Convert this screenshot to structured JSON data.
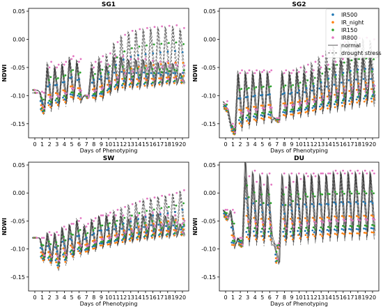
{
  "chart_data": [
    {
      "type": "line",
      "title": "SG1",
      "xlabel": "Days of Phenotyping",
      "ylabel": "NDWI",
      "ylim": [
        -0.175,
        0.055
      ],
      "yticks": [
        0.05,
        0.0,
        -0.05,
        -0.1,
        -0.15
      ],
      "xticks": [
        0,
        1,
        2,
        3,
        4,
        5,
        6,
        7,
        8,
        9,
        10,
        11,
        12,
        13,
        14,
        15,
        16,
        17,
        18,
        19,
        20
      ],
      "day_ranges": {
        "normal": {
          "low": [
            -0.09,
            -0.13,
            -0.125,
            -0.12,
            -0.115,
            -0.11,
            -0.112,
            -0.1,
            -0.11,
            -0.108,
            -0.1,
            -0.095,
            -0.092,
            -0.09,
            -0.09,
            -0.088,
            -0.087,
            -0.085,
            -0.083,
            -0.082,
            -0.08
          ],
          "high": [
            -0.09,
            -0.093,
            -0.05,
            -0.05,
            -0.045,
            -0.035,
            -0.04,
            -0.1,
            -0.05,
            -0.04,
            -0.045,
            -0.03,
            -0.03,
            -0.035,
            -0.035,
            -0.035,
            -0.038,
            -0.04,
            -0.04,
            -0.042,
            -0.06
          ]
        },
        "drought_stress": {
          "low": [
            -0.095,
            -0.135,
            -0.13,
            -0.125,
            -0.12,
            -0.112,
            -0.115,
            -0.105,
            -0.112,
            -0.11,
            -0.1,
            -0.095,
            -0.09,
            -0.088,
            -0.085,
            -0.083,
            -0.082,
            -0.08,
            -0.078,
            -0.077,
            -0.075
          ],
          "high": [
            -0.095,
            -0.095,
            -0.04,
            -0.045,
            -0.04,
            -0.03,
            -0.035,
            -0.1,
            -0.04,
            -0.03,
            -0.025,
            -0.005,
            0.008,
            0.015,
            0.018,
            0.02,
            0.022,
            0.023,
            0.024,
            0.025,
            0.02
          ]
        }
      },
      "series": [
        {
          "name": "IR500",
          "color": "#1f77b4"
        },
        {
          "name": "IR_night",
          "color": "#ff7f0e"
        },
        {
          "name": "IR150",
          "color": "#2ca02c"
        },
        {
          "name": "IR800",
          "color": "#e377c2"
        },
        {
          "name": "normal",
          "color": "#333333",
          "style": "solid"
        },
        {
          "name": "drought stress",
          "color": "#333333",
          "style": "dashed"
        }
      ],
      "legend": "top-right",
      "grid": false
    },
    {
      "type": "line",
      "title": "SG2",
      "xlabel": "Days of Phenotyping",
      "ylabel": "NDWI",
      "ylim": [
        -0.175,
        0.055
      ],
      "yticks": [
        0.05,
        0.0,
        -0.05,
        -0.1,
        -0.15
      ],
      "xticks": [
        0,
        1,
        2,
        3,
        4,
        5,
        6,
        7,
        8,
        9,
        10,
        11,
        12,
        13,
        14,
        15,
        16,
        17,
        18,
        19,
        20
      ],
      "day_ranges": {
        "normal": {
          "low": [
            -0.125,
            -0.165,
            -0.16,
            -0.155,
            -0.152,
            -0.15,
            -0.148,
            -0.145,
            -0.143,
            -0.142,
            -0.14,
            -0.138,
            -0.135,
            -0.133,
            -0.132,
            -0.13,
            -0.128,
            -0.125,
            -0.122,
            -0.12,
            -0.12
          ],
          "high": [
            -0.115,
            -0.15,
            -0.06,
            -0.06,
            -0.06,
            -0.058,
            -0.058,
            -0.14,
            -0.06,
            -0.06,
            -0.058,
            -0.058,
            -0.055,
            -0.05,
            -0.045,
            -0.04,
            -0.035,
            -0.03,
            -0.03,
            -0.03,
            -0.03
          ]
        },
        "drought_stress": {
          "low": [
            -0.13,
            -0.17,
            -0.165,
            -0.16,
            -0.155,
            -0.152,
            -0.15,
            -0.148,
            -0.145,
            -0.143,
            -0.14,
            -0.138,
            -0.135,
            -0.133,
            -0.13,
            -0.128,
            -0.126,
            -0.124,
            -0.122,
            -0.12,
            -0.118
          ],
          "high": [
            -0.11,
            -0.155,
            -0.055,
            -0.055,
            -0.055,
            -0.055,
            -0.055,
            -0.14,
            -0.055,
            -0.055,
            -0.05,
            -0.045,
            -0.04,
            -0.03,
            -0.02,
            -0.01,
            -0.005,
            0.0,
            0.002,
            0.003,
            0.0
          ]
        }
      },
      "series": [
        {
          "name": "IR500",
          "color": "#1f77b4"
        },
        {
          "name": "IR_night",
          "color": "#ff7f0e"
        },
        {
          "name": "IR150",
          "color": "#2ca02c"
        },
        {
          "name": "IR800",
          "color": "#e377c2"
        },
        {
          "name": "normal",
          "color": "#333333",
          "style": "solid"
        },
        {
          "name": "drought stress",
          "color": "#333333",
          "style": "dashed"
        }
      ],
      "legend": "top-right",
      "grid": false
    },
    {
      "type": "line",
      "title": "SW",
      "xlabel": "Days of Phenotyping",
      "ylabel": "NDWI",
      "ylim": [
        -0.175,
        0.055
      ],
      "yticks": [
        0.05,
        0.0,
        -0.05,
        -0.1,
        -0.15
      ],
      "xticks": [
        0,
        1,
        2,
        3,
        4,
        5,
        6,
        7,
        8,
        9,
        10,
        11,
        12,
        13,
        14,
        15,
        16,
        17,
        18,
        19,
        20
      ],
      "day_ranges": {
        "normal": {
          "low": [
            -0.08,
            -0.12,
            -0.125,
            -0.13,
            -0.12,
            -0.115,
            -0.11,
            -0.11,
            -0.105,
            -0.1,
            -0.098,
            -0.095,
            -0.093,
            -0.09,
            -0.088,
            -0.086,
            -0.085,
            -0.083,
            -0.082,
            -0.08,
            -0.078
          ],
          "high": [
            -0.08,
            -0.08,
            -0.07,
            -0.07,
            -0.06,
            -0.055,
            -0.05,
            -0.06,
            -0.05,
            -0.04,
            -0.04,
            -0.04,
            -0.04,
            -0.045,
            -0.04,
            -0.04,
            -0.035,
            -0.035,
            -0.04,
            -0.04,
            -0.055
          ]
        },
        "drought_stress": {
          "low": [
            -0.08,
            -0.125,
            -0.13,
            -0.14,
            -0.13,
            -0.12,
            -0.115,
            -0.11,
            -0.105,
            -0.1,
            -0.098,
            -0.095,
            -0.09,
            -0.088,
            -0.085,
            -0.083,
            -0.08,
            -0.078,
            -0.076,
            -0.075,
            -0.073
          ],
          "high": [
            -0.08,
            -0.08,
            -0.075,
            -0.075,
            -0.065,
            -0.055,
            -0.045,
            -0.055,
            -0.045,
            -0.04,
            -0.035,
            -0.03,
            -0.025,
            -0.02,
            -0.015,
            -0.01,
            -0.008,
            -0.005,
            -0.003,
            0.0,
            0.005
          ]
        }
      },
      "series": [
        {
          "name": "IR500",
          "color": "#1f77b4"
        },
        {
          "name": "IR_night",
          "color": "#ff7f0e"
        },
        {
          "name": "IR150",
          "color": "#2ca02c"
        },
        {
          "name": "IR800",
          "color": "#e377c2"
        },
        {
          "name": "normal",
          "color": "#333333",
          "style": "solid"
        },
        {
          "name": "drought stress",
          "color": "#333333",
          "style": "dashed"
        }
      ],
      "legend": "top-right",
      "grid": false
    },
    {
      "type": "line",
      "title": "DU",
      "xlabel": "Days of Phenotyping",
      "ylabel": "NDWI",
      "ylim": [
        -0.175,
        0.055
      ],
      "yticks": [
        0.05,
        0.0,
        -0.05,
        -0.1,
        -0.15
      ],
      "xticks": [
        0,
        1,
        2,
        3,
        4,
        5,
        6,
        7,
        8,
        9,
        10,
        11,
        12,
        13,
        14,
        15,
        16,
        17,
        18,
        19,
        20
      ],
      "day_ranges": {
        "normal": {
          "low": [
            -0.045,
            -0.1,
            -0.095,
            -0.095,
            -0.09,
            -0.09,
            -0.09,
            -0.128,
            -0.09,
            -0.09,
            -0.088,
            -0.088,
            -0.087,
            -0.087,
            -0.086,
            -0.086,
            -0.085,
            -0.085,
            -0.085,
            -0.084,
            -0.083
          ],
          "high": [
            -0.03,
            -0.03,
            -0.08,
            0.06,
            0.04,
            0.035,
            0.035,
            -0.095,
            0.035,
            0.035,
            0.035,
            0.035,
            0.035,
            0.035,
            0.035,
            0.04,
            0.04,
            0.04,
            0.04,
            0.04,
            0.04
          ]
        },
        "drought_stress": {
          "low": [
            -0.05,
            -0.1,
            -0.098,
            -0.095,
            -0.095,
            -0.095,
            -0.095,
            -0.1,
            -0.095,
            -0.095,
            -0.093,
            -0.092,
            -0.09,
            -0.09,
            -0.088,
            -0.087,
            -0.086,
            -0.085,
            -0.085,
            -0.084,
            -0.083
          ],
          "high": [
            -0.03,
            -0.035,
            -0.08,
            0.03,
            0.02,
            0.015,
            0.015,
            -0.09,
            0.01,
            0.02,
            0.025,
            0.03,
            0.03,
            0.035,
            0.035,
            0.035,
            0.035,
            0.035,
            0.035,
            0.035,
            0.035
          ]
        }
      },
      "series": [
        {
          "name": "IR500",
          "color": "#1f77b4"
        },
        {
          "name": "IR_night",
          "color": "#ff7f0e"
        },
        {
          "name": "IR150",
          "color": "#2ca02c"
        },
        {
          "name": "IR800",
          "color": "#e377c2"
        },
        {
          "name": "normal",
          "color": "#333333",
          "style": "solid"
        },
        {
          "name": "drought stress",
          "color": "#333333",
          "style": "dashed"
        }
      ],
      "legend": "top-right",
      "grid": false
    }
  ]
}
